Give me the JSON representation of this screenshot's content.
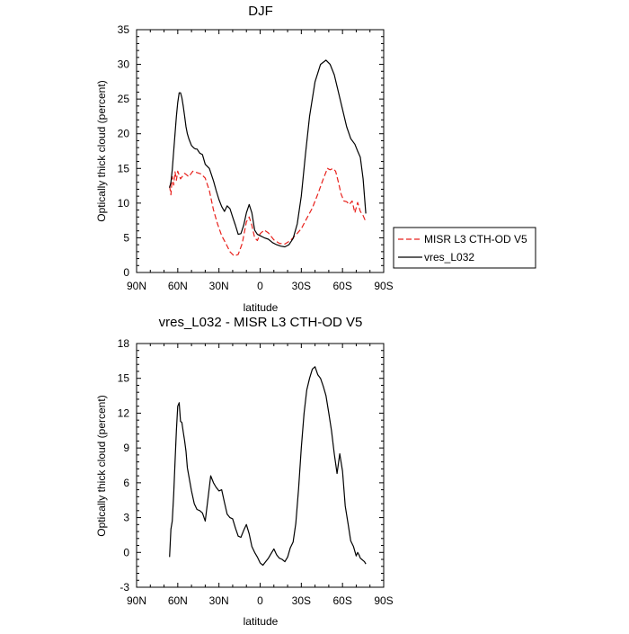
{
  "chart_data": [
    {
      "type": "line",
      "title": "DJF",
      "xlabel": "latitude",
      "ylabel": "Optically thick cloud (percent)",
      "xlim": [
        90,
        -90
      ],
      "ylim": [
        0,
        35
      ],
      "xticks": [
        {
          "value": 90,
          "label": "90N"
        },
        {
          "value": 60,
          "label": "60N"
        },
        {
          "value": 30,
          "label": "30N"
        },
        {
          "value": 0,
          "label": "0"
        },
        {
          "value": -30,
          "label": "30S"
        },
        {
          "value": -60,
          "label": "60S"
        },
        {
          "value": -90,
          "label": "90S"
        }
      ],
      "yticks": [
        0,
        5,
        10,
        15,
        20,
        25,
        30,
        35
      ],
      "legend_position": "right",
      "series": [
        {
          "name": "MISR L3 CTH-OD V5",
          "color": "#e8211c",
          "dash": true,
          "x": [
            66,
            65,
            64,
            63,
            62,
            61,
            60,
            58,
            55,
            52,
            49,
            46,
            43,
            40,
            37,
            34,
            31,
            28,
            25,
            22,
            19,
            16,
            13,
            10,
            8,
            6,
            4,
            2,
            0,
            -3,
            -6,
            -10,
            -14,
            -18,
            -22,
            -26,
            -30,
            -34,
            -38,
            -42,
            -46,
            -49,
            -51,
            -53,
            -55,
            -57,
            -59,
            -61,
            -63,
            -65,
            -67,
            -69,
            -71,
            -73,
            -75,
            -77
          ],
          "y": [
            12.5,
            11.2,
            13.8,
            12.6,
            14.5,
            13.3,
            14.6,
            13.5,
            14.3,
            13.8,
            14.6,
            14.4,
            14.2,
            13.6,
            11.8,
            9.0,
            7.0,
            5.3,
            4.2,
            3.0,
            2.4,
            2.6,
            4.2,
            7.3,
            8.0,
            6.8,
            5.0,
            4.6,
            5.6,
            6.1,
            5.7,
            4.7,
            4.2,
            4.1,
            4.6,
            5.4,
            6.3,
            7.8,
            9.3,
            11.3,
            13.5,
            15.0,
            14.8,
            15.0,
            14.6,
            13.0,
            11.3,
            10.3,
            10.2,
            9.8,
            10.3,
            8.6,
            10.1,
            8.8,
            8.2,
            7.3
          ]
        },
        {
          "name": "vres_L032",
          "color": "#000000",
          "dash": false,
          "x": [
            66,
            65,
            64,
            63,
            62,
            61,
            60,
            59,
            58,
            57,
            56,
            55,
            54,
            53,
            52,
            51,
            50,
            49,
            48,
            47,
            46,
            45,
            44,
            42,
            40,
            37,
            34,
            32,
            30,
            28,
            26,
            24,
            22,
            20,
            18,
            16,
            14,
            12,
            10,
            8,
            6,
            4,
            2,
            0,
            -3,
            -6,
            -9,
            -12,
            -15,
            -18,
            -21,
            -24,
            -27,
            -30,
            -33,
            -36,
            -40,
            -44,
            -48,
            -51,
            -54,
            -57,
            -60,
            -63,
            -66,
            -69,
            -71,
            -73,
            -75,
            -77
          ],
          "y": [
            12.2,
            13.0,
            14.8,
            17.5,
            20.0,
            22.5,
            24.5,
            25.9,
            25.9,
            25.2,
            24.0,
            22.5,
            21.0,
            20.0,
            19.3,
            18.8,
            18.3,
            18.1,
            17.9,
            17.8,
            17.8,
            17.5,
            17.2,
            17.0,
            15.6,
            15.0,
            13.2,
            11.8,
            10.5,
            9.5,
            8.8,
            9.6,
            9.2,
            8.0,
            6.8,
            5.5,
            5.6,
            6.8,
            8.6,
            9.8,
            8.6,
            6.1,
            5.5,
            5.3,
            5.0,
            4.8,
            4.3,
            4.0,
            3.8,
            3.7,
            4.0,
            4.9,
            7.0,
            11.0,
            17.0,
            22.5,
            27.5,
            30.0,
            30.6,
            30.0,
            28.5,
            26.0,
            23.5,
            21.0,
            19.3,
            18.5,
            17.5,
            16.6,
            13.5,
            8.5
          ]
        }
      ]
    },
    {
      "type": "line",
      "title": "vres_L032 - MISR L3 CTH-OD V5",
      "xlabel": "latitude",
      "ylabel": "Optically thick cloud (percent)",
      "xlim": [
        90,
        -90
      ],
      "ylim": [
        -3,
        18
      ],
      "xticks": [
        {
          "value": 90,
          "label": "90N"
        },
        {
          "value": 60,
          "label": "60N"
        },
        {
          "value": 30,
          "label": "30N"
        },
        {
          "value": 0,
          "label": "0"
        },
        {
          "value": -30,
          "label": "30S"
        },
        {
          "value": -60,
          "label": "60S"
        },
        {
          "value": -90,
          "label": "90S"
        }
      ],
      "yticks": [
        -3,
        0,
        3,
        6,
        9,
        12,
        15,
        18
      ],
      "series": [
        {
          "color": "#000000",
          "dash": false,
          "x": [
            66,
            65,
            64,
            63,
            62,
            61,
            60,
            59,
            58,
            57,
            56,
            55,
            54,
            53,
            52,
            50,
            48,
            46,
            44,
            42,
            40,
            38,
            36,
            34,
            32,
            30,
            28,
            26,
            24,
            22,
            20,
            18,
            16,
            14,
            12,
            10,
            8,
            6,
            4,
            2,
            0,
            -2,
            -4,
            -6,
            -8,
            -10,
            -12,
            -14,
            -16,
            -18,
            -20,
            -22,
            -24,
            -26,
            -28,
            -30,
            -32,
            -34,
            -36,
            -38,
            -40,
            -42,
            -44,
            -46,
            -48,
            -50,
            -52,
            -54,
            -56,
            -58,
            -60,
            -62,
            -64,
            -66,
            -68,
            -70,
            -71,
            -72,
            -73,
            -74,
            -75,
            -76,
            -77
          ],
          "y": [
            -0.4,
            2.0,
            2.7,
            5.0,
            7.8,
            10.5,
            12.6,
            12.9,
            11.3,
            11.2,
            10.4,
            9.6,
            8.7,
            7.3,
            6.6,
            5.3,
            4.2,
            3.7,
            3.6,
            3.4,
            2.7,
            4.6,
            6.6,
            6.0,
            5.6,
            5.3,
            5.4,
            4.3,
            3.3,
            3.0,
            2.9,
            2.1,
            1.4,
            1.3,
            1.9,
            2.4,
            1.6,
            0.5,
            0.0,
            -0.4,
            -0.9,
            -1.1,
            -0.8,
            -0.5,
            -0.1,
            0.3,
            -0.2,
            -0.5,
            -0.6,
            -0.8,
            -0.4,
            0.4,
            0.9,
            2.5,
            5.5,
            9.0,
            12.0,
            14.0,
            15.0,
            15.8,
            16.0,
            15.3,
            15.0,
            14.3,
            13.5,
            12.0,
            10.5,
            8.5,
            6.8,
            8.5,
            7.0,
            4.0,
            2.5,
            1.0,
            0.5,
            -0.3,
            0.0,
            -0.2,
            -0.5,
            -0.6,
            -0.7,
            -0.8,
            -1.0
          ]
        }
      ]
    }
  ]
}
